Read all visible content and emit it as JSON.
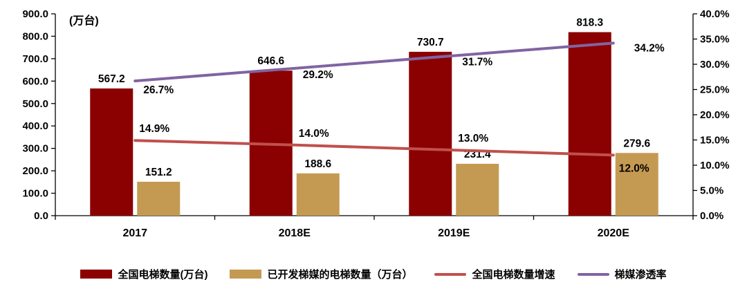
{
  "chart_data": {
    "type": "bar+line",
    "title": "",
    "unit_label": "(万台)",
    "categories": [
      "2017",
      "2018E",
      "2019E",
      "2020E"
    ],
    "left_axis": {
      "min": 0,
      "max": 900,
      "step": 100,
      "suffix": ""
    },
    "right_axis": {
      "min": 0,
      "max": 40,
      "step": 5,
      "suffix": "%"
    },
    "grid": false,
    "legend_position": "bottom",
    "series": [
      {
        "name": "全国电梯数量(万台)",
        "type": "bar",
        "axis": "left",
        "color": "#8B0000",
        "values": [
          567.2,
          646.6,
          730.7,
          818.3
        ],
        "labels": [
          "567.2",
          "646.6",
          "730.7",
          "818.3"
        ]
      },
      {
        "name": "已开发梯媒的电梯数量（万台）",
        "type": "bar",
        "axis": "left",
        "color": "#C49A53",
        "values": [
          151.2,
          188.6,
          231.4,
          279.6
        ],
        "labels": [
          "151.2",
          "188.6",
          "231.4",
          "279.6"
        ]
      },
      {
        "name": "全国电梯数量增速",
        "type": "line",
        "axis": "right",
        "color": "#C0504D",
        "values": [
          14.9,
          14.0,
          13.0,
          12.0
        ],
        "labels": [
          "14.9%",
          "14.0%",
          "13.0%",
          "12.0%"
        ]
      },
      {
        "name": "梯媒渗透率",
        "type": "line",
        "axis": "right",
        "color": "#8064A2",
        "values": [
          26.7,
          29.2,
          31.7,
          34.2
        ],
        "labels": [
          "26.7%",
          "29.2%",
          "31.7%",
          "34.2%"
        ]
      }
    ]
  }
}
